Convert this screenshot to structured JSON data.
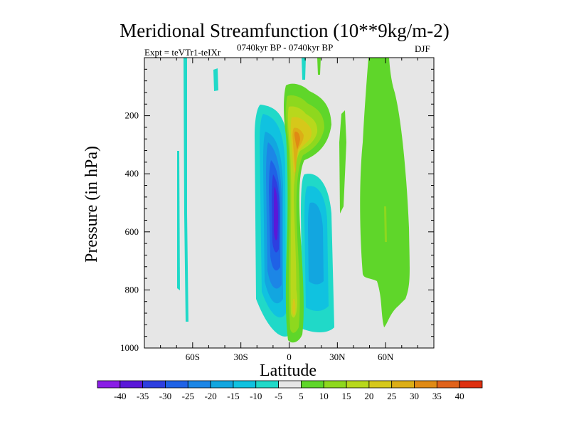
{
  "chart_data": {
    "type": "contour",
    "title": "Meridional Streamfunction (10**9kg/m-2)",
    "left_label": "Expt = teVTr1-teIXr",
    "center_label": "0740kyr BP - 0740kyr BP",
    "right_label": "DJF",
    "xlabel": "Latitude",
    "ylabel": "Pressure (in hPa)",
    "xlim": [
      -90,
      90
    ],
    "ylim": [
      1000,
      0
    ],
    "x_ticks": [
      {
        "value": -60,
        "label": "60S"
      },
      {
        "value": -30,
        "label": "30S"
      },
      {
        "value": 0,
        "label": "0"
      },
      {
        "value": 30,
        "label": "30N"
      },
      {
        "value": 60,
        "label": "60N"
      }
    ],
    "y_ticks": [
      {
        "value": 200,
        "label": "200"
      },
      {
        "value": 400,
        "label": "400"
      },
      {
        "value": 600,
        "label": "600"
      },
      {
        "value": 800,
        "label": "800"
      },
      {
        "value": 1000,
        "label": "1000"
      }
    ],
    "background_color": "#e6e6e6",
    "colorbar": {
      "levels": [
        "-40",
        "-35",
        "-30",
        "-25",
        "-20",
        "-15",
        "-10",
        "-5",
        "5",
        "10",
        "15",
        "20",
        "25",
        "30",
        "35",
        "40"
      ],
      "colors": [
        "#8a1ee6",
        "#5a18d8",
        "#2e3fe0",
        "#1f62e6",
        "#1c86e6",
        "#12a6e0",
        "#10c2e0",
        "#20d9c8",
        "#e6e6e6",
        "#5fd62a",
        "#8ed81e",
        "#b8d81c",
        "#d6c81a",
        "#dcae16",
        "#e08a14",
        "#e0621a",
        "#de3010"
      ]
    },
    "features": [
      {
        "name": "southern-subtropical-cell",
        "sign": "negative",
        "lat": [
          -20,
          0
        ],
        "pressure": [
          200,
          980
        ],
        "min_value": -35
      },
      {
        "name": "northern-subtropical-cell",
        "sign": "negative",
        "lat": [
          5,
          30
        ],
        "pressure": [
          350,
          970
        ],
        "min_value": -15
      },
      {
        "name": "equatorial-positive-cell",
        "sign": "positive",
        "lat": [
          -3,
          12
        ],
        "pressure": [
          80,
          990
        ],
        "max_value": 30
      },
      {
        "name": "northern-ferrel-cell",
        "sign": "positive",
        "lat": [
          45,
          68
        ],
        "pressure": [
          0,
          930
        ],
        "max_value": 10
      }
    ]
  }
}
